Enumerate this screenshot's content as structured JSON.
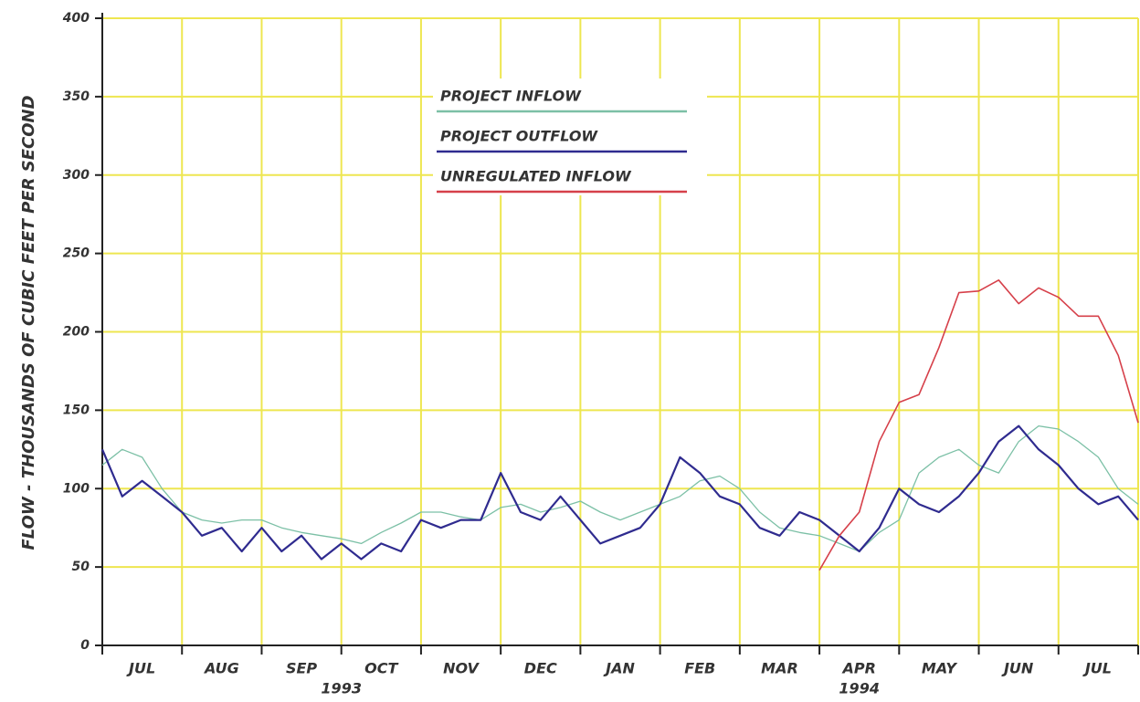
{
  "chart_data": {
    "type": "line",
    "y_label": "FLOW - THOUSANDS OF CUBIC FEET PER SECOND",
    "categories": [
      "JUL",
      "AUG",
      "SEP",
      "OCT",
      "NOV",
      "DEC",
      "JAN",
      "FEB",
      "MAR",
      "APR",
      "MAY",
      "JUN",
      "JUL"
    ],
    "year_labels": [
      {
        "value": 3,
        "label": "1993"
      },
      {
        "value": 9.5,
        "label": "1994"
      }
    ],
    "x": [
      0,
      0.25,
      0.5,
      0.75,
      1,
      1.25,
      1.5,
      1.75,
      2,
      2.25,
      2.5,
      2.75,
      3,
      3.25,
      3.5,
      3.75,
      4,
      4.25,
      4.5,
      4.75,
      5,
      5.25,
      5.5,
      5.75,
      6,
      6.25,
      6.5,
      6.75,
      7,
      7.25,
      7.5,
      7.75,
      8,
      8.25,
      8.5,
      8.75,
      9,
      9.25,
      9.5,
      9.75,
      10,
      10.25,
      10.5,
      10.75,
      11,
      11.25,
      11.5,
      11.75,
      12,
      12.25,
      12.5,
      12.75,
      13
    ],
    "xlim": [
      0,
      13
    ],
    "xticks": [
      0,
      1,
      2,
      3,
      4,
      5,
      6,
      7,
      8,
      9,
      10,
      11,
      12,
      13
    ],
    "ylim": [
      0,
      400
    ],
    "yticks": [
      0,
      50,
      100,
      150,
      200,
      250,
      300,
      350,
      400
    ],
    "grid": true,
    "series": [
      {
        "name": "PROJECT INFLOW",
        "color": "#7cc0a6",
        "width": 1.3,
        "values": [
          115,
          125,
          120,
          100,
          85,
          80,
          78,
          80,
          80,
          75,
          72,
          70,
          68,
          65,
          72,
          78,
          85,
          85,
          82,
          80,
          88,
          90,
          85,
          88,
          92,
          85,
          80,
          85,
          90,
          95,
          105,
          108,
          100,
          85,
          75,
          72,
          70,
          65,
          60,
          72,
          80,
          110,
          120,
          125,
          115,
          110,
          130,
          140,
          138,
          130,
          120,
          100,
          90
        ]
      },
      {
        "name": "PROJECT OUTFLOW",
        "color": "#2f2b8f",
        "width": 2.2,
        "values": [
          125,
          95,
          105,
          95,
          85,
          70,
          75,
          60,
          75,
          60,
          70,
          55,
          65,
          55,
          65,
          60,
          80,
          75,
          80,
          80,
          110,
          85,
          80,
          95,
          80,
          65,
          70,
          75,
          90,
          120,
          110,
          95,
          90,
          75,
          70,
          85,
          80,
          70,
          60,
          75,
          100,
          90,
          85,
          95,
          110,
          130,
          140,
          125,
          115,
          100,
          90,
          95,
          80
        ]
      },
      {
        "name": "UNREGULATED INFLOW",
        "color": "#d6404a",
        "width": 1.6,
        "values": [
          null,
          null,
          null,
          null,
          null,
          null,
          null,
          null,
          null,
          null,
          null,
          null,
          null,
          null,
          null,
          null,
          null,
          null,
          null,
          null,
          null,
          null,
          null,
          null,
          null,
          null,
          null,
          null,
          null,
          null,
          null,
          null,
          null,
          null,
          null,
          null,
          48,
          70,
          85,
          130,
          155,
          160,
          190,
          225,
          226,
          233,
          218,
          228,
          222,
          210,
          210,
          185,
          142
        ]
      }
    ]
  }
}
